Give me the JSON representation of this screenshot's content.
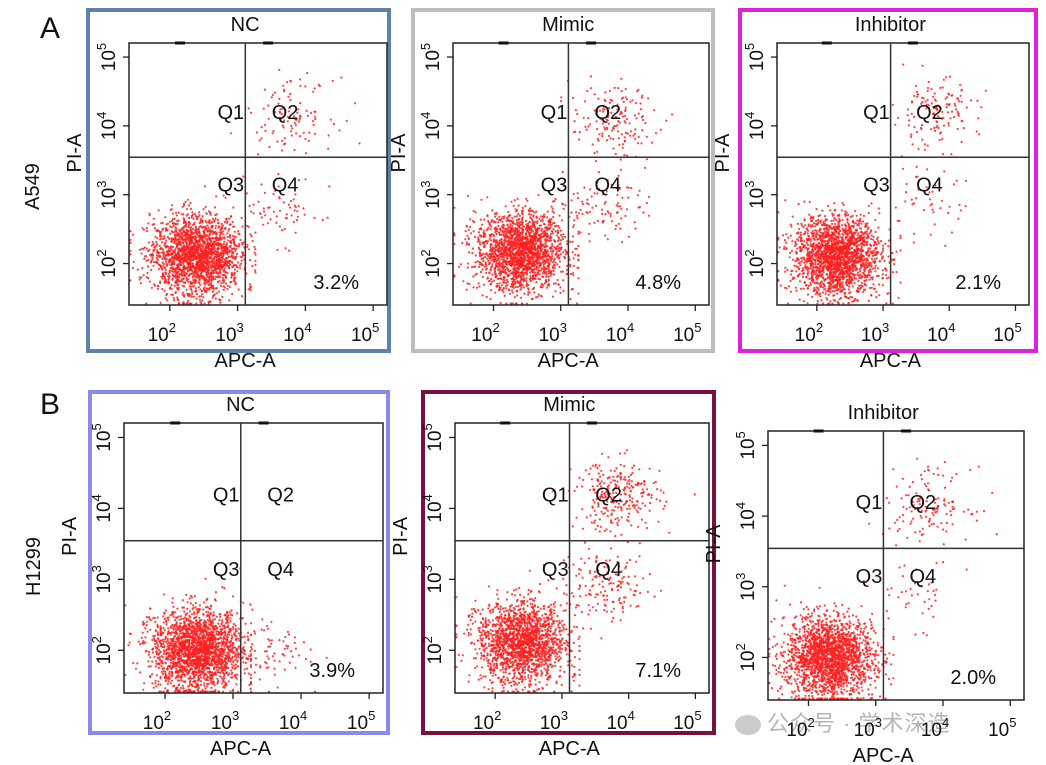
{
  "panel_letters": [
    "A",
    "B"
  ],
  "row_labels": [
    "A549",
    "H1299"
  ],
  "watermark": "公众号 · 学术深造",
  "colors": {
    "dots": "#ff2020",
    "frame_A_NC": "#5f82a9",
    "frame_A_Mimic": "#bdbdbd",
    "frame_A_Inhibitor": "#dd22dd",
    "frame_B_NC": "#8a8aee",
    "frame_B_Mimic": "#7a1040"
  },
  "chart_data": [
    {
      "type": "scatter",
      "title": "NC",
      "xlabel": "APC-A",
      "ylabel": "PI-A",
      "row": "A549",
      "xscale": "log",
      "yscale": "log",
      "x_ticks": [
        "10^2",
        "10^3",
        "10^4",
        "10^5"
      ],
      "y_ticks": [
        "10^2",
        "10^3",
        "10^4",
        "10^5"
      ],
      "xlim": [
        25,
        160000
      ],
      "ylim": [
        25,
        160000
      ],
      "gate": {
        "x": 1300,
        "y": 3500
      },
      "quadrants": [
        "Q1",
        "Q2",
        "Q3",
        "Q4"
      ],
      "annotation": "3.2%",
      "annotation_value": 3.2,
      "populations": [
        {
          "quadrant": "Q3",
          "center": [
            250,
            130
          ],
          "fraction": 0.9
        },
        {
          "quadrant": "Q2",
          "center": [
            6000,
            15000
          ],
          "fraction": 0.05
        },
        {
          "quadrant": "Q4",
          "center": [
            4000,
            600
          ],
          "fraction": 0.032
        }
      ]
    },
    {
      "type": "scatter",
      "title": "Mimic",
      "xlabel": "APC-A",
      "ylabel": "PI-A",
      "row": "A549",
      "xscale": "log",
      "yscale": "log",
      "x_ticks": [
        "10^2",
        "10^3",
        "10^4",
        "10^5"
      ],
      "y_ticks": [
        "10^2",
        "10^3",
        "10^4",
        "10^5"
      ],
      "xlim": [
        25,
        160000
      ],
      "ylim": [
        25,
        160000
      ],
      "gate": {
        "x": 1300,
        "y": 3500
      },
      "quadrants": [
        "Q1",
        "Q2",
        "Q3",
        "Q4"
      ],
      "annotation": "4.8%",
      "annotation_value": 4.8,
      "populations": [
        {
          "quadrant": "Q3",
          "center": [
            250,
            150
          ],
          "fraction": 0.87
        },
        {
          "quadrant": "Q2",
          "center": [
            6000,
            12000
          ],
          "fraction": 0.07
        },
        {
          "quadrant": "Q4",
          "center": [
            4000,
            700
          ],
          "fraction": 0.048
        }
      ]
    },
    {
      "type": "scatter",
      "title": "Inhibitor",
      "xlabel": "APC-A",
      "ylabel": "PI-A",
      "row": "A549",
      "xscale": "log",
      "yscale": "log",
      "x_ticks": [
        "10^2",
        "10^3",
        "10^4",
        "10^5"
      ],
      "y_ticks": [
        "10^2",
        "10^3",
        "10^4",
        "10^5"
      ],
      "xlim": [
        25,
        160000
      ],
      "ylim": [
        25,
        160000
      ],
      "gate": {
        "x": 1300,
        "y": 3500
      },
      "quadrants": [
        "Q1",
        "Q2",
        "Q3",
        "Q4"
      ],
      "annotation": "2.1%",
      "annotation_value": 2.1,
      "populations": [
        {
          "quadrant": "Q3",
          "center": [
            200,
            130
          ],
          "fraction": 0.9
        },
        {
          "quadrant": "Q2",
          "center": [
            6000,
            15000
          ],
          "fraction": 0.06
        },
        {
          "quadrant": "Q4",
          "center": [
            4000,
            800
          ],
          "fraction": 0.021
        }
      ]
    },
    {
      "type": "scatter",
      "title": "NC",
      "xlabel": "APC-A",
      "ylabel": "PI-A",
      "row": "H1299",
      "xscale": "log",
      "yscale": "log",
      "x_ticks": [
        "10^2",
        "10^3",
        "10^4",
        "10^5"
      ],
      "y_ticks": [
        "10^2",
        "10^3",
        "10^4",
        "10^5"
      ],
      "xlim": [
        25,
        160000
      ],
      "ylim": [
        25,
        160000
      ],
      "gate": {
        "x": 1300,
        "y": 3500
      },
      "quadrants": [
        "Q1",
        "Q2",
        "Q3",
        "Q4"
      ],
      "annotation": "3.9%",
      "annotation_value": 3.9,
      "populations": [
        {
          "quadrant": "Q3",
          "center": [
            300,
            100
          ],
          "fraction": 0.95
        },
        {
          "quadrant": "Q4",
          "center": [
            3000,
            100
          ],
          "fraction": 0.039
        }
      ]
    },
    {
      "type": "scatter",
      "title": "Mimic",
      "xlabel": "APC-A",
      "ylabel": "PI-A",
      "row": "H1299",
      "xscale": "log",
      "yscale": "log",
      "x_ticks": [
        "10^2",
        "10^3",
        "10^4",
        "10^5"
      ],
      "y_ticks": [
        "10^2",
        "10^3",
        "10^4",
        "10^5"
      ],
      "xlim": [
        25,
        160000
      ],
      "ylim": [
        25,
        160000
      ],
      "gate": {
        "x": 1300,
        "y": 3500
      },
      "quadrants": [
        "Q1",
        "Q2",
        "Q3",
        "Q4"
      ],
      "annotation": "7.1%",
      "annotation_value": 7.1,
      "populations": [
        {
          "quadrant": "Q3",
          "center": [
            250,
            130
          ],
          "fraction": 0.8
        },
        {
          "quadrant": "Q2",
          "center": [
            7000,
            15000
          ],
          "fraction": 0.12
        },
        {
          "quadrant": "Q4",
          "center": [
            5000,
            800
          ],
          "fraction": 0.071
        }
      ]
    },
    {
      "type": "scatter",
      "title": "Inhibitor",
      "xlabel": "APC-A",
      "ylabel": "PI-A",
      "row": "H1299",
      "xscale": "log",
      "yscale": "log",
      "x_ticks": [
        "10^2",
        "10^3",
        "10^4",
        "10^5"
      ],
      "y_ticks": [
        "10^2",
        "10^3",
        "10^4",
        "10^5"
      ],
      "xlim": [
        25,
        160000
      ],
      "ylim": [
        25,
        160000
      ],
      "gate": {
        "x": 1300,
        "y": 3500
      },
      "quadrants": [
        "Q1",
        "Q2",
        "Q3",
        "Q4"
      ],
      "annotation": "2.0%",
      "annotation_value": 2.0,
      "populations": [
        {
          "quadrant": "Q3",
          "center": [
            200,
            100
          ],
          "fraction": 0.9
        },
        {
          "quadrant": "Q2",
          "center": [
            6000,
            15000
          ],
          "fraction": 0.06
        },
        {
          "quadrant": "Q4",
          "center": [
            4000,
            800
          ],
          "fraction": 0.02
        }
      ]
    }
  ]
}
